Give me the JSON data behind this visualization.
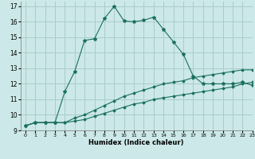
{
  "title": "",
  "xlabel": "Humidex (Indice chaleur)",
  "bg_color": "#cce8e8",
  "line_color": "#1a7060",
  "grid_color": "#aacccc",
  "xlim": [
    -0.5,
    23
  ],
  "ylim": [
    9,
    17.3
  ],
  "xticks": [
    0,
    1,
    2,
    3,
    4,
    5,
    6,
    7,
    8,
    9,
    10,
    11,
    12,
    13,
    14,
    15,
    16,
    17,
    18,
    19,
    20,
    21,
    22,
    23
  ],
  "yticks": [
    9,
    10,
    11,
    12,
    13,
    14,
    15,
    16,
    17
  ],
  "line1_x": [
    0,
    1,
    2,
    3,
    4,
    5,
    6,
    7,
    8,
    9,
    10,
    11,
    12,
    13,
    14,
    15,
    16,
    17,
    18,
    19,
    20,
    21,
    22,
    23
  ],
  "line1_y": [
    9.3,
    9.5,
    9.5,
    9.5,
    9.5,
    9.6,
    9.7,
    9.9,
    10.1,
    10.3,
    10.5,
    10.7,
    10.8,
    11.0,
    11.1,
    11.2,
    11.3,
    11.4,
    11.5,
    11.6,
    11.7,
    11.8,
    12.0,
    12.1
  ],
  "line2_x": [
    0,
    1,
    2,
    3,
    4,
    5,
    6,
    7,
    8,
    9,
    10,
    11,
    12,
    13,
    14,
    15,
    16,
    17,
    18,
    19,
    20,
    21,
    22,
    23
  ],
  "line2_y": [
    9.3,
    9.5,
    9.5,
    9.5,
    9.5,
    9.8,
    10.0,
    10.3,
    10.6,
    10.9,
    11.2,
    11.4,
    11.6,
    11.8,
    12.0,
    12.1,
    12.2,
    12.4,
    12.5,
    12.6,
    12.7,
    12.8,
    12.9,
    12.9
  ],
  "line3_x": [
    0,
    1,
    2,
    3,
    4,
    5,
    6,
    7,
    8,
    9,
    10,
    11,
    12,
    13,
    14,
    15,
    16,
    17,
    18,
    19,
    20,
    21,
    22,
    23
  ],
  "line3_y": [
    9.3,
    9.5,
    9.5,
    9.5,
    11.5,
    12.8,
    14.8,
    14.9,
    16.2,
    17.0,
    16.05,
    16.0,
    16.1,
    16.3,
    15.5,
    14.7,
    13.9,
    12.5,
    12.0,
    12.0,
    12.0,
    12.0,
    12.1,
    11.9
  ]
}
